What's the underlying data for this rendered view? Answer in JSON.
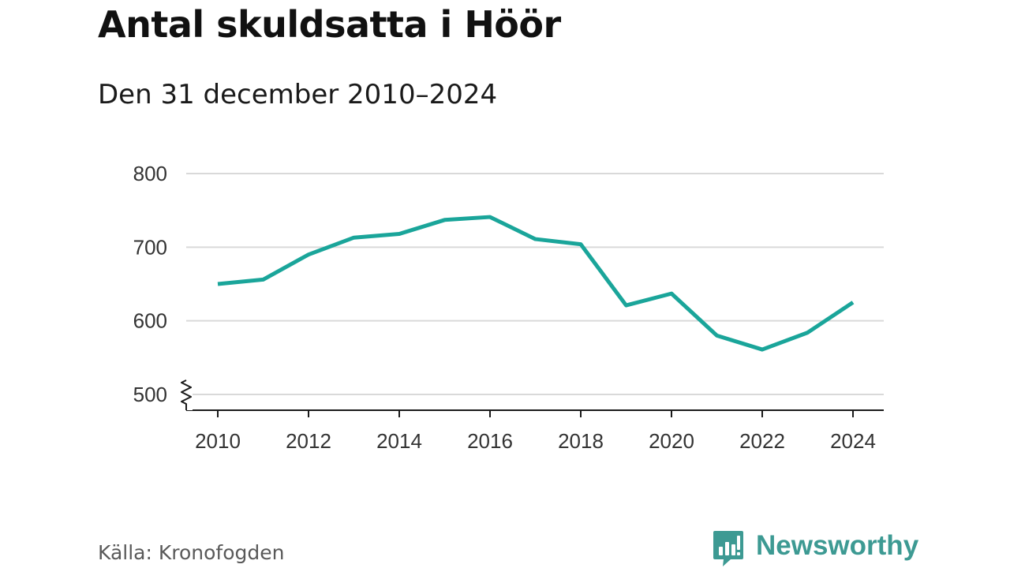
{
  "title": "Antal skuldsatta i Höör",
  "subtitle": "Den 31 december 2010–2024",
  "source": "Källa: Kronofogden",
  "brand": {
    "name": "Newsworthy",
    "icon": "newsworthy-logo-icon",
    "color": "#3d9a93"
  },
  "colors": {
    "line": "#1aa59a",
    "grid": "#d9d9d9",
    "axis": "#1a1a1a",
    "tick_label": "#333333"
  },
  "chart_data": {
    "type": "line",
    "title": "Antal skuldsatta i Höör",
    "subtitle": "Den 31 december 2010–2024",
    "xlabel": "",
    "ylabel": "",
    "x": [
      2010,
      2011,
      2012,
      2013,
      2014,
      2015,
      2016,
      2017,
      2018,
      2019,
      2020,
      2021,
      2022,
      2023,
      2024
    ],
    "series": [
      {
        "values": [
          650,
          656,
          690,
          713,
          718,
          737,
          741,
          711,
          704,
          621,
          637,
          580,
          561,
          584,
          625
        ]
      }
    ],
    "ylim": [
      500,
      800
    ],
    "y_ticks": [
      500,
      600,
      700,
      800
    ],
    "x_ticks": [
      2010,
      2012,
      2014,
      2016,
      2018,
      2020,
      2022,
      2024
    ],
    "y_axis_break": true,
    "grid": "horizontal",
    "legend": "none"
  }
}
